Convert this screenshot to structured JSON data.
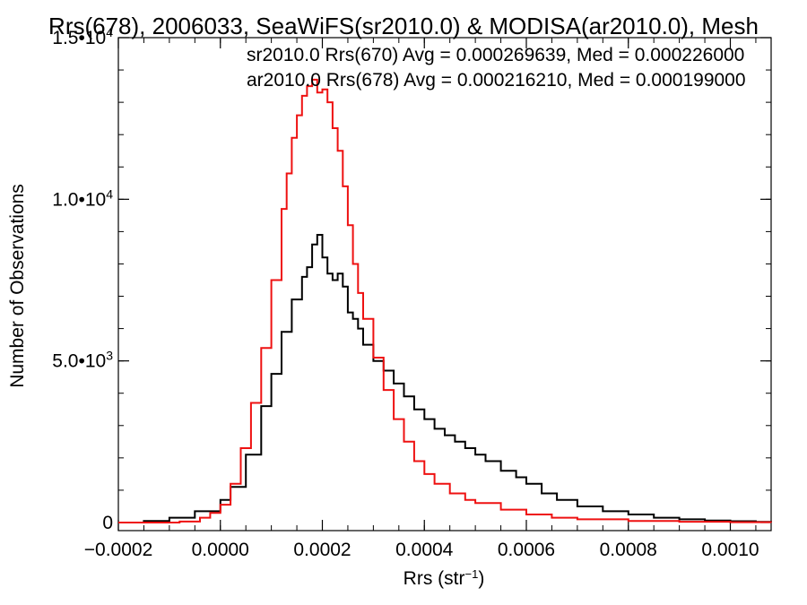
{
  "chart_data": {
    "type": "line",
    "title": "Rrs(678), 2006033, SeaWiFS(sr2010.0) & MODISA(ar2010.0), Mesh",
    "xlabel": "Rrs (str",
    "xlabel_sup": "−1",
    "xlabel_close": ")",
    "ylabel": "Number of Observations",
    "xlim": [
      -0.0002,
      0.00108
    ],
    "ylim": [
      -250,
      15000
    ],
    "grid": false,
    "legend_position": "top-right",
    "x_ticks": [
      {
        "value": -0.0002,
        "label": "−0.0002"
      },
      {
        "value": 0.0,
        "label": "0.0000"
      },
      {
        "value": 0.0002,
        "label": "0.0002"
      },
      {
        "value": 0.0004,
        "label": "0.0004"
      },
      {
        "value": 0.0006,
        "label": "0.0006"
      },
      {
        "value": 0.0008,
        "label": "0.0008"
      },
      {
        "value": 0.001,
        "label": "0.0010"
      }
    ],
    "y_ticks": [
      {
        "value": 0,
        "mant": "0",
        "exp": ""
      },
      {
        "value": 5000,
        "mant": "5.0•10",
        "exp": "3"
      },
      {
        "value": 10000,
        "mant": "1.0•10",
        "exp": "4"
      },
      {
        "value": 15000,
        "mant": "1.5•10",
        "exp": "4"
      }
    ],
    "series": [
      {
        "name": "sr2010.0 Rrs(670)",
        "legend_text": "sr2010.0 Rrs(670) Avg = 0.000269639, Med = 0.000226000",
        "color": "#000000",
        "points": [
          [
            -0.0002,
            0
          ],
          [
            -0.00015,
            50
          ],
          [
            -0.0001,
            150
          ],
          [
            -5e-05,
            350
          ],
          [
            0.0,
            700
          ],
          [
            2e-05,
            1100
          ],
          [
            5e-05,
            2100
          ],
          [
            8e-05,
            3600
          ],
          [
            0.0001,
            4600
          ],
          [
            0.00012,
            5900
          ],
          [
            0.00014,
            6900
          ],
          [
            0.00016,
            7600
          ],
          [
            0.00017,
            7900
          ],
          [
            0.00018,
            8600
          ],
          [
            0.00019,
            8900
          ],
          [
            0.0002,
            8200
          ],
          [
            0.00021,
            7700
          ],
          [
            0.00022,
            7500
          ],
          [
            0.00023,
            7700
          ],
          [
            0.00024,
            7300
          ],
          [
            0.00025,
            6500
          ],
          [
            0.00026,
            6300
          ],
          [
            0.00027,
            6000
          ],
          [
            0.00028,
            5500
          ],
          [
            0.0003,
            5000
          ],
          [
            0.00032,
            4700
          ],
          [
            0.00034,
            4300
          ],
          [
            0.00036,
            3900
          ],
          [
            0.00038,
            3500
          ],
          [
            0.0004,
            3200
          ],
          [
            0.00042,
            2900
          ],
          [
            0.00044,
            2700
          ],
          [
            0.00046,
            2500
          ],
          [
            0.00048,
            2300
          ],
          [
            0.0005,
            2100
          ],
          [
            0.00052,
            1900
          ],
          [
            0.00055,
            1600
          ],
          [
            0.00058,
            1400
          ],
          [
            0.0006,
            1200
          ],
          [
            0.00063,
            900
          ],
          [
            0.00066,
            700
          ],
          [
            0.0007,
            500
          ],
          [
            0.00075,
            350
          ],
          [
            0.0008,
            250
          ],
          [
            0.00085,
            150
          ],
          [
            0.0009,
            100
          ],
          [
            0.00095,
            60
          ],
          [
            0.001,
            40
          ],
          [
            0.00105,
            20
          ],
          [
            0.00108,
            10
          ]
        ]
      },
      {
        "name": "ar2010.0 Rrs(678)",
        "legend_text": "ar2010.0 Rrs(678) Avg = 0.000216210, Med = 0.000199000",
        "color": "#ee1111",
        "points": [
          [
            -0.0002,
            0
          ],
          [
            -0.00012,
            0
          ],
          [
            -8e-05,
            30
          ],
          [
            -4e-05,
            150
          ],
          [
            -2e-05,
            300
          ],
          [
            0.0,
            550
          ],
          [
            2e-05,
            1200
          ],
          [
            4e-05,
            2300
          ],
          [
            6e-05,
            3700
          ],
          [
            8e-05,
            5400
          ],
          [
            0.0001,
            7500
          ],
          [
            0.00012,
            9700
          ],
          [
            0.00013,
            10800
          ],
          [
            0.00014,
            11900
          ],
          [
            0.00015,
            12600
          ],
          [
            0.00016,
            13200
          ],
          [
            0.00017,
            13500
          ],
          [
            0.00018,
            13700
          ],
          [
            0.00019,
            13300
          ],
          [
            0.0002,
            13400
          ],
          [
            0.00021,
            13000
          ],
          [
            0.00022,
            12200
          ],
          [
            0.00023,
            11500
          ],
          [
            0.00024,
            10400
          ],
          [
            0.00025,
            9200
          ],
          [
            0.00026,
            8000
          ],
          [
            0.00027,
            7100
          ],
          [
            0.00028,
            6300
          ],
          [
            0.0003,
            5100
          ],
          [
            0.00032,
            4100
          ],
          [
            0.00034,
            3200
          ],
          [
            0.00036,
            2500
          ],
          [
            0.00038,
            1900
          ],
          [
            0.0004,
            1500
          ],
          [
            0.00042,
            1200
          ],
          [
            0.00045,
            900
          ],
          [
            0.00048,
            700
          ],
          [
            0.0005,
            600
          ],
          [
            0.00055,
            400
          ],
          [
            0.0006,
            250
          ],
          [
            0.00065,
            150
          ],
          [
            0.0007,
            100
          ],
          [
            0.0008,
            50
          ],
          [
            0.0009,
            25
          ],
          [
            0.001,
            10
          ],
          [
            0.00108,
            5
          ]
        ]
      }
    ]
  }
}
